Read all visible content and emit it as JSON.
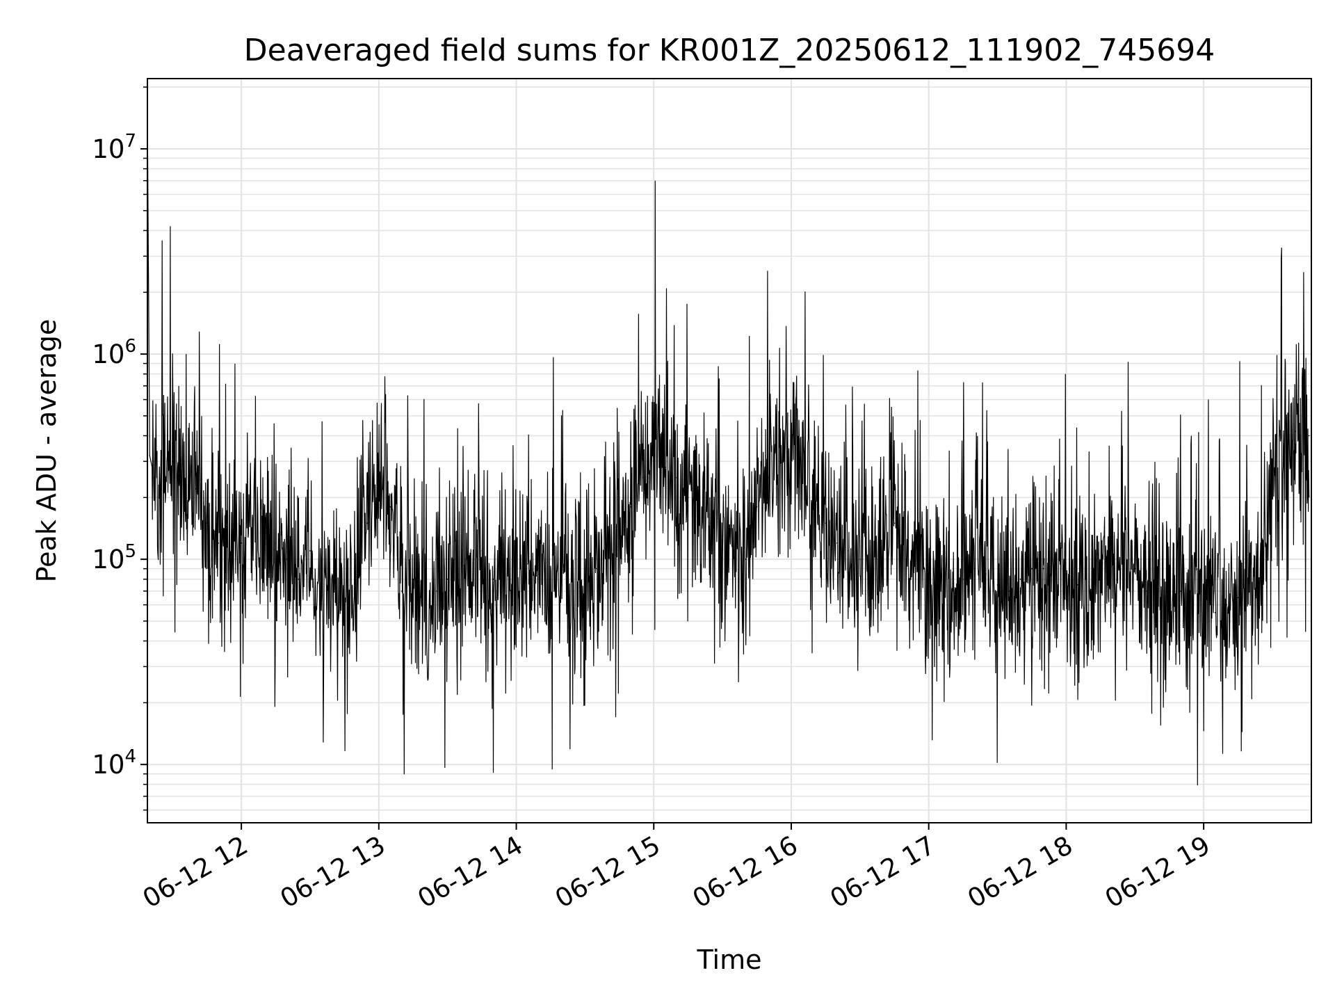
{
  "chart_data": {
    "type": "line",
    "title": "Deaveraged field sums for KR001Z_20250612_111902_745694",
    "xlabel": "Time",
    "ylabel": "Peak ADU - average",
    "yscale": "log",
    "ylim": [
      5200,
      22000000
    ],
    "xlim": [
      "2025-06-12 11:19",
      "2025-06-12 19:47"
    ],
    "grid": true,
    "colors": {
      "line": "#000000",
      "grid": "#e2e2e2",
      "axes": "#000000",
      "background": "#ffffff"
    },
    "x_ticks": [
      {
        "t": "2025-06-12 12:00",
        "label": "06-12 12"
      },
      {
        "t": "2025-06-12 13:00",
        "label": "06-12 13"
      },
      {
        "t": "2025-06-12 14:00",
        "label": "06-12 14"
      },
      {
        "t": "2025-06-12 15:00",
        "label": "06-12 15"
      },
      {
        "t": "2025-06-12 16:00",
        "label": "06-12 16"
      },
      {
        "t": "2025-06-12 17:00",
        "label": "06-12 17"
      },
      {
        "t": "2025-06-12 18:00",
        "label": "06-12 18"
      },
      {
        "t": "2025-06-12 19:00",
        "label": "06-12 19"
      }
    ],
    "y_ticks": [
      {
        "value": 10000,
        "base": "10",
        "exp": "4"
      },
      {
        "value": 100000,
        "base": "10",
        "exp": "5"
      },
      {
        "value": 1000000,
        "base": "10",
        "exp": "6"
      },
      {
        "value": 10000000,
        "base": "10",
        "exp": "7"
      }
    ],
    "series": [
      {
        "x": [
          "2025-06-12 11:19",
          "2025-06-12 11:20",
          "2025-06-12 11:22",
          "2025-06-12 11:26",
          "2025-06-12 11:30",
          "2025-06-12 11:35",
          "2025-06-12 11:40",
          "2025-06-12 11:45",
          "2025-06-12 11:50",
          "2025-06-12 11:55",
          "2025-06-12 12:00",
          "2025-06-12 12:05",
          "2025-06-12 12:10",
          "2025-06-12 12:15",
          "2025-06-12 12:20",
          "2025-06-12 12:25",
          "2025-06-12 12:30",
          "2025-06-12 12:35",
          "2025-06-12 12:40",
          "2025-06-12 12:45",
          "2025-06-12 12:50",
          "2025-06-12 12:55",
          "2025-06-12 13:00",
          "2025-06-12 13:05",
          "2025-06-12 13:10",
          "2025-06-12 13:15",
          "2025-06-12 13:20",
          "2025-06-12 13:25",
          "2025-06-12 13:30",
          "2025-06-12 13:35",
          "2025-06-12 13:40",
          "2025-06-12 13:45",
          "2025-06-12 13:50",
          "2025-06-12 13:55",
          "2025-06-12 14:00",
          "2025-06-12 14:05",
          "2025-06-12 14:10",
          "2025-06-12 14:15",
          "2025-06-12 14:20",
          "2025-06-12 14:25",
          "2025-06-12 14:30",
          "2025-06-12 14:35",
          "2025-06-12 14:40",
          "2025-06-12 14:45",
          "2025-06-12 14:50",
          "2025-06-12 14:55",
          "2025-06-12 15:00",
          "2025-06-12 15:05",
          "2025-06-12 15:10",
          "2025-06-12 15:15",
          "2025-06-12 15:20",
          "2025-06-12 15:25",
          "2025-06-12 15:30",
          "2025-06-12 15:35",
          "2025-06-12 15:40",
          "2025-06-12 15:45",
          "2025-06-12 15:50",
          "2025-06-12 15:55",
          "2025-06-12 16:00",
          "2025-06-12 16:05",
          "2025-06-12 16:10",
          "2025-06-12 16:15",
          "2025-06-12 16:20",
          "2025-06-12 16:25",
          "2025-06-12 16:30",
          "2025-06-12 16:35",
          "2025-06-12 16:40",
          "2025-06-12 16:45",
          "2025-06-12 16:50",
          "2025-06-12 16:55",
          "2025-06-12 17:00",
          "2025-06-12 17:05",
          "2025-06-12 17:10",
          "2025-06-12 17:15",
          "2025-06-12 17:20",
          "2025-06-12 17:25",
          "2025-06-12 17:30",
          "2025-06-12 17:35",
          "2025-06-12 17:40",
          "2025-06-12 17:45",
          "2025-06-12 17:50",
          "2025-06-12 17:55",
          "2025-06-12 18:00",
          "2025-06-12 18:05",
          "2025-06-12 18:10",
          "2025-06-12 18:15",
          "2025-06-12 18:20",
          "2025-06-12 18:25",
          "2025-06-12 18:30",
          "2025-06-12 18:35",
          "2025-06-12 18:40",
          "2025-06-12 18:45",
          "2025-06-12 18:50",
          "2025-06-12 18:55",
          "2025-06-12 19:00",
          "2025-06-12 19:05",
          "2025-06-12 19:10",
          "2025-06-12 19:15",
          "2025-06-12 19:20",
          "2025-06-12 19:25",
          "2025-06-12 19:30",
          "2025-06-12 19:35",
          "2025-06-12 19:40",
          "2025-06-12 19:46"
        ],
        "y": [
          15000000,
          320000,
          250000,
          280000,
          300000,
          250000,
          220000,
          150000,
          120000,
          110000,
          120000,
          150000,
          110000,
          120000,
          100000,
          80000,
          110000,
          70000,
          75000,
          60000,
          80000,
          150000,
          210000,
          180000,
          70000,
          80000,
          60000,
          70000,
          80000,
          85000,
          90000,
          110000,
          80000,
          90000,
          100000,
          95000,
          90000,
          80000,
          75000,
          70000,
          80000,
          90000,
          100000,
          130000,
          180000,
          250000,
          350000,
          280000,
          250000,
          200000,
          180000,
          150000,
          130000,
          110000,
          100000,
          180000,
          250000,
          300000,
          350000,
          280000,
          180000,
          150000,
          120000,
          110000,
          100000,
          90000,
          120000,
          150000,
          100000,
          90000,
          80000,
          70000,
          65000,
          80000,
          90000,
          85000,
          75000,
          70000,
          80000,
          90000,
          90000,
          80000,
          85000,
          75000,
          80000,
          90000,
          100000,
          100000,
          90000,
          70000,
          65000,
          60000,
          70000,
          60000,
          60000,
          55000,
          60000,
          65000,
          70000,
          80000,
          250000,
          350000,
          420000,
          400000
        ]
      }
    ]
  }
}
